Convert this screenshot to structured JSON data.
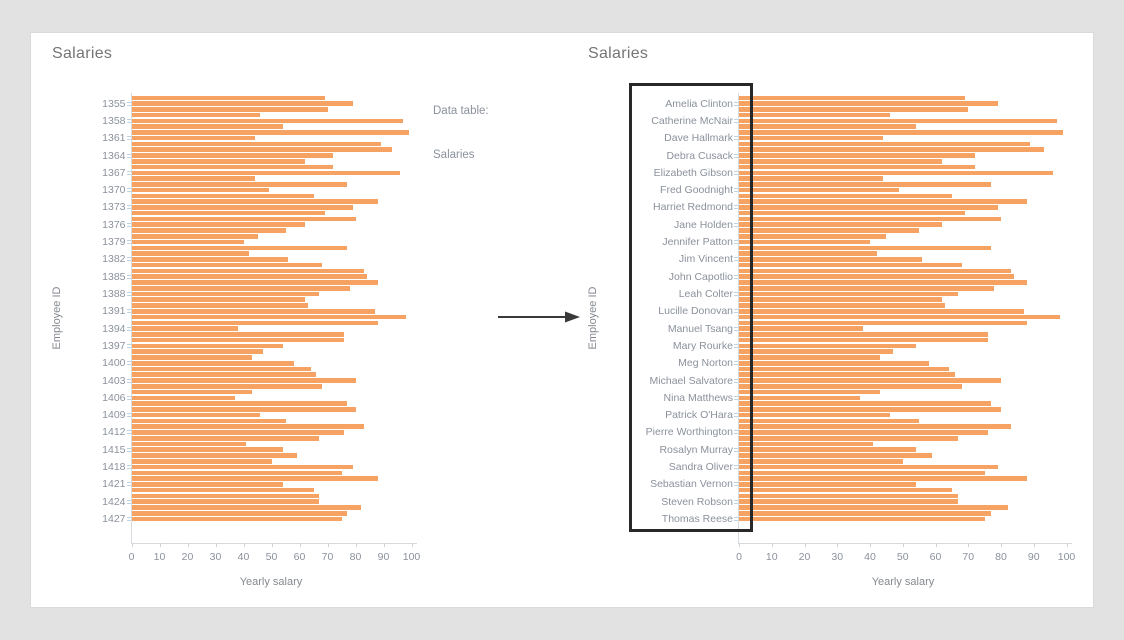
{
  "page": {
    "background": "#e2e2e2",
    "card_background": "#ffffff"
  },
  "colors": {
    "bar": "#f5a263",
    "title": "#757575",
    "axis_label": "#8b919c",
    "axis_title": "#85898f",
    "axis_line": "#d8dbde",
    "x_tick": "#c9d2da",
    "y_label_tick": "#bdd3e0",
    "arrow": "#3a3a3a",
    "highlight_box": "#282828"
  },
  "annotation": {
    "line1": "Data table:",
    "line2": "Salaries"
  },
  "chart_data": [
    {
      "id": "left",
      "type": "bar",
      "orientation": "horizontal",
      "title": "Salaries",
      "xlabel": "Yearly salary",
      "ylabel": "Employee ID",
      "xlim": [
        0,
        100
      ],
      "x_tick_values": [
        0,
        10,
        20,
        30,
        40,
        50,
        60,
        70,
        80,
        90,
        100
      ],
      "label_every": 3,
      "first_labeled_bar_index": 1,
      "y_tick_labels": [
        "1355",
        "1358",
        "1361",
        "1364",
        "1367",
        "1370",
        "1373",
        "1376",
        "1379",
        "1382",
        "1385",
        "1388",
        "1391",
        "1394",
        "1397",
        "1400",
        "1403",
        "1406",
        "1409",
        "1412",
        "1415",
        "1418",
        "1421",
        "1424",
        "1427"
      ],
      "values": [
        69,
        79,
        70,
        46,
        97,
        54,
        99,
        44,
        89,
        93,
        72,
        62,
        72,
        96,
        44,
        77,
        49,
        65,
        88,
        79,
        69,
        80,
        62,
        55,
        45,
        40,
        77,
        42,
        56,
        68,
        83,
        84,
        88,
        78,
        67,
        62,
        63,
        87,
        98,
        88,
        38,
        76,
        76,
        54,
        47,
        43,
        58,
        64,
        66,
        80,
        68,
        43,
        37,
        77,
        80,
        46,
        55,
        83,
        76,
        67,
        41,
        54,
        59,
        50,
        79,
        75,
        88,
        54,
        65,
        67,
        67,
        82,
        77,
        75
      ],
      "grid": false,
      "legend": "none"
    },
    {
      "id": "right",
      "type": "bar",
      "orientation": "horizontal",
      "title": "Salaries",
      "xlabel": "Yearly salary",
      "ylabel": "Employee ID",
      "xlim": [
        0,
        100
      ],
      "x_tick_values": [
        0,
        10,
        20,
        30,
        40,
        50,
        60,
        70,
        80,
        90,
        100
      ],
      "label_every": 3,
      "first_labeled_bar_index": 1,
      "y_tick_labels": [
        "Amelia Clinton",
        "Catherine McNair",
        "Dave Hallmark",
        "Debra Cusack",
        "Elizabeth Gibson",
        "Fred Goodnight",
        "Harriet Redmond",
        "Jane Holden",
        "Jennifer Patton",
        "Jim Vincent",
        "John Capotlio",
        "Leah Colter",
        "Lucille Donovan",
        "Manuel Tsang",
        "Mary Rourke",
        "Meg Norton",
        "Michael Salvatore",
        "Nina Matthews",
        "Patrick O'Hara",
        "Pierre Worthington",
        "Rosalyn Murray",
        "Sandra Oliver",
        "Sebastian Vernon",
        "Steven Robson",
        "Thomas Reese"
      ],
      "values": [
        69,
        79,
        70,
        46,
        97,
        54,
        99,
        44,
        89,
        93,
        72,
        62,
        72,
        96,
        44,
        77,
        49,
        65,
        88,
        79,
        69,
        80,
        62,
        55,
        45,
        40,
        77,
        42,
        56,
        68,
        83,
        84,
        88,
        78,
        67,
        62,
        63,
        87,
        98,
        88,
        38,
        76,
        76,
        54,
        47,
        43,
        58,
        64,
        66,
        80,
        68,
        43,
        37,
        77,
        80,
        46,
        55,
        83,
        76,
        67,
        41,
        54,
        59,
        50,
        79,
        75,
        88,
        54,
        65,
        67,
        67,
        82,
        77,
        75
      ],
      "grid": false,
      "legend": "none"
    }
  ]
}
